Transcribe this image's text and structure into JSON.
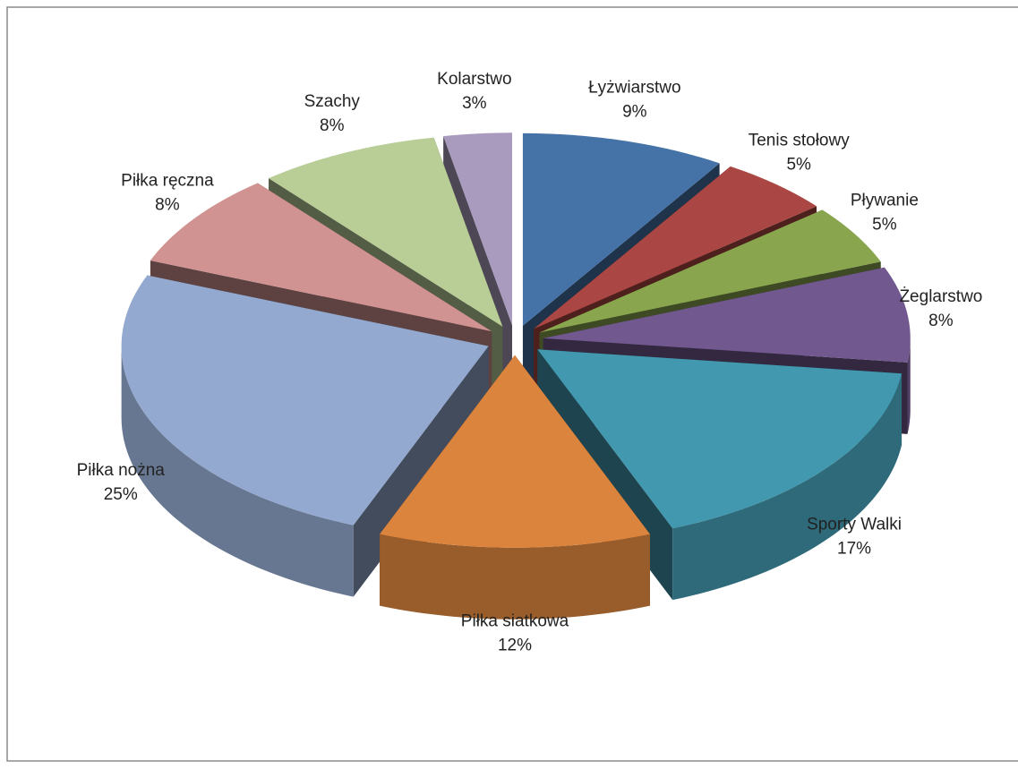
{
  "chart_data": {
    "type": "pie",
    "categories": [
      "Łyżwiarstwo",
      "Tenis stołowy",
      "Pływanie",
      "Żeglarstwo",
      "Sporty Walki",
      "Piłka siatkowa",
      "Piłka nożna",
      "Piłka ręczna",
      "Szachy",
      "Kolarstwo"
    ],
    "values": [
      9,
      5,
      5,
      8,
      17,
      12,
      25,
      8,
      8,
      3
    ],
    "value_labels": [
      "9%",
      "5%",
      "5%",
      "8%",
      "17%",
      "12%",
      "25%",
      "8%",
      "8%",
      "3%"
    ],
    "colors": [
      "#4572a7",
      "#aa4643",
      "#89a54e",
      "#71588f",
      "#4198af",
      "#db843d",
      "#93a9cf",
      "#d19392",
      "#b9cd96",
      "#a99bbd"
    ]
  }
}
